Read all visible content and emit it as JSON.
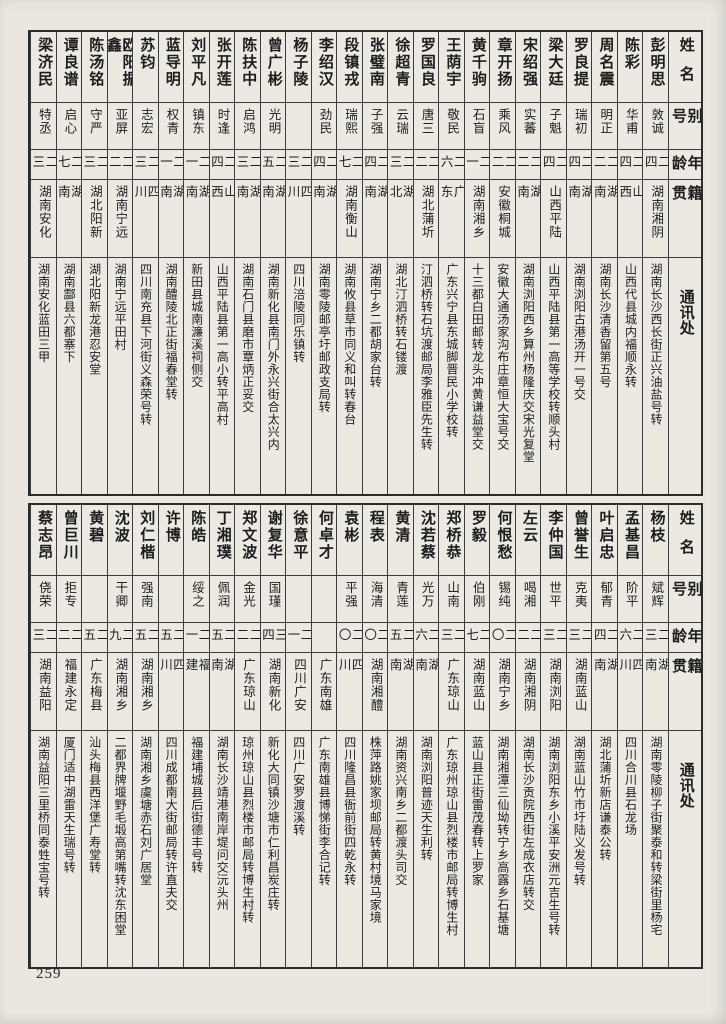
{
  "page": {
    "number": "259"
  },
  "headers": {
    "name": "姓名",
    "alias": "别号",
    "age": "年龄",
    "origin": "籍贯",
    "address": "通讯处"
  },
  "tables": [
    {
      "persons": [
        {
          "name": "彭明思",
          "alias": "敦诚",
          "age": "二四",
          "origin": "湖南湘阴",
          "address": "湖南长沙西长街正兴油盐号转"
        },
        {
          "name": "陈彩",
          "alias": "华甫",
          "age": "二四",
          "origin": "山西",
          "address": "山西代县城内福顺永转"
        },
        {
          "name": "周名震",
          "alias": "明正",
          "age": "二二",
          "origin": "湖南",
          "address": "湖南长沙清香留第五号"
        },
        {
          "name": "罗良提",
          "alias": "瑞初",
          "age": "二四",
          "origin": "湖南",
          "address": "湖南浏阳古港汤开一号交"
        },
        {
          "name": "梁大廷",
          "alias": "子魁",
          "age": "二四",
          "origin": "山西平陆",
          "address": "山西平陆县第一高等学校转顺头村"
        },
        {
          "name": "宋绍强",
          "alias": "实蕃",
          "age": "二二",
          "origin": "湖南",
          "address": "湖南浏阳西乡算州杨隆庆交宋光复堂"
        },
        {
          "name": "章开扬",
          "alias": "乘风",
          "age": "二二",
          "origin": "安徽桐城",
          "address": "安徽大通汤家沟布庄章恒大宝号交"
        },
        {
          "name": "黄千驹",
          "alias": "石盲",
          "age": "二一",
          "origin": "湖南湘乡",
          "address": "十三都白田邮转龙头冲黄谦益堂交"
        },
        {
          "name": "王荫宇",
          "alias": "敬民",
          "age": "二六",
          "origin": "广东",
          "address": "广东兴宁县东城脚晋民小学校转"
        },
        {
          "name": "罗国良",
          "alias": "唐三",
          "age": "二二",
          "origin": "湖北蒲圻",
          "address": "汀泗桥转石坑渡邮局李雅臣先生转"
        },
        {
          "name": "徐超青",
          "alias": "云瑞",
          "age": "二三",
          "origin": "湖北",
          "address": "湖北汀泗桥转石镂渡"
        },
        {
          "name": "张璧南",
          "alias": "子强",
          "age": "二四",
          "origin": "湖南",
          "address": "湖南宁乡二都胡家台转"
        },
        {
          "name": "段镇戎",
          "alias": "瑞熙",
          "age": "二七",
          "origin": "湖南衡山",
          "address": "湖南攸县草市同义和叫转春台"
        },
        {
          "name": "李绍汉",
          "alias": "劲民",
          "age": "二四",
          "origin": "湖南",
          "address": "湖南零陵邮亭圩邮政支局转"
        },
        {
          "name": "杨子陵",
          "alias": "",
          "age": "二三",
          "origin": "四川",
          "address": "四川涪陵同乐镇转"
        },
        {
          "name": "曾广彬",
          "alias": "光明",
          "age": "二五",
          "origin": "湖南",
          "address": "湖南新化县南门外永兴街合太兴内"
        },
        {
          "name": "陈扶中",
          "alias": "启鸿",
          "age": "二三",
          "origin": "湖南",
          "address": "湖南石门县磨市覃炳正妥交"
        },
        {
          "name": "张开莲",
          "alias": "时逢",
          "age": "二四",
          "origin": "山西",
          "address": "山西平陆县第一高小转平高村"
        },
        {
          "name": "刘平凡",
          "alias": "镇东",
          "age": "二一",
          "origin": "湖南",
          "address": "新田县城南濂溪祠侧交"
        },
        {
          "name": "蓝导明",
          "alias": "权青",
          "age": "二一",
          "origin": "湖南",
          "address": "湖南醴陵北正街福春堂转"
        },
        {
          "name": "苏钧",
          "alias": "志宏",
          "age": "二三",
          "origin": "四川",
          "address": "四川南充县下河街义森荣号转"
        },
        {
          "name": "欧阳振鑫",
          "alias": "亚屏",
          "age": "二二",
          "origin": "湖南宁远",
          "address": "湖南宁远平田村"
        },
        {
          "name": "陈汤铭",
          "alias": "守严",
          "age": "二三",
          "origin": "湖北阳新",
          "address": "湖北阳新龙港忍安堂"
        },
        {
          "name": "谭良谱",
          "alias": "启心",
          "age": "二七",
          "origin": "湖南",
          "address": "湖南酃县六都寨下"
        },
        {
          "name": "梁济民",
          "alias": "特丞",
          "age": "二三",
          "origin": "湖南安化",
          "address": "湖南安化蓝田三甲"
        }
      ]
    },
    {
      "persons": [
        {
          "name": "杨枝",
          "alias": "斌辉",
          "age": "二三",
          "origin": "湖南",
          "address": "湖南零陵柳子街聚泰和转梁街里杨宅"
        },
        {
          "name": "孟基昌",
          "alias": "阶平",
          "age": "二六",
          "origin": "四川",
          "address": "四川合川县石龙场"
        },
        {
          "name": "叶启忠",
          "alias": "郁青",
          "age": "二四",
          "origin": "湖南",
          "address": "湖北蒲圻新店谦泰公转"
        },
        {
          "name": "曾誉生",
          "alias": "克夷",
          "age": "二三",
          "origin": "湖南蓝山",
          "address": "湖南蓝山竹市圩陆义发号转"
        },
        {
          "name": "李仲国",
          "alias": "世平",
          "age": "二三",
          "origin": "湖南浏阳",
          "address": "湖南浏阳东乡小溪平安洲元吉生号转"
        },
        {
          "name": "左云",
          "alias": "喝湘",
          "age": "二二",
          "origin": "湖南湘阴",
          "address": "湖南长沙贡院西街左成衣店转交"
        },
        {
          "name": "何恨愁",
          "alias": "锡纯",
          "age": "二〇",
          "origin": "湖南宁乡",
          "address": "湖南湘潭三仙坳转宁乡高露乡石基塘"
        },
        {
          "name": "罗毅",
          "alias": "伯刚",
          "age": "二七",
          "origin": "湖南蓝山",
          "address": "蓝山县正街雷茂春转上罗家"
        },
        {
          "name": "郑桥恭",
          "alias": "山南",
          "age": "二三",
          "origin": "广东琼山",
          "address": "广东琼州琼山县烈楼市邮局转博生村"
        },
        {
          "name": "沈若蔡",
          "alias": "光万",
          "age": "二六",
          "origin": "湖南",
          "address": "湖南浏阳普迹天生利转"
        },
        {
          "name": "黄清",
          "alias": "青莲",
          "age": "二五",
          "origin": "湖南",
          "address": "湖南资兴南乡二都渡头司交"
        },
        {
          "name": "程表",
          "alias": "海清",
          "age": "二〇",
          "origin": "湖南湘醴",
          "address": "株萍路姚家坝邮局转黄村境马家境"
        },
        {
          "name": "袁彬",
          "alias": "平强",
          "age": "二〇",
          "origin": "四川",
          "address": "四川隆昌县衙前街四乾永转"
        },
        {
          "name": "何卓才",
          "alias": "",
          "age": "",
          "origin": "广东南雄",
          "address": "广东南雄县博悌街李合记转"
        },
        {
          "name": "徐意平",
          "alias": "",
          "age": "二一",
          "origin": "四川广安",
          "address": "四川广安罗渡溪转"
        },
        {
          "name": "谢复华",
          "alias": "国瑾",
          "age": "三四",
          "origin": "湖南新化",
          "address": "新化大同镇沙塘市仁利昌炭庄转"
        },
        {
          "name": "郑文波",
          "alias": "金光",
          "age": "二二",
          "origin": "广东琼山",
          "address": "琼州琼山县烈楼市邮局转博生村转"
        },
        {
          "name": "丁湘璞",
          "alias": "佩润",
          "age": "二五",
          "origin": "湖南",
          "address": "湖南长沙靖港南岸堤问交沅头州"
        },
        {
          "name": "陈皓",
          "alias": "绥之",
          "age": "二一",
          "origin": "福建",
          "address": "福建埔城县后街德丰号转"
        },
        {
          "name": "许博",
          "alias": "",
          "age": "二五",
          "origin": "四川",
          "address": "四川成都南大街邮局转许直夫交"
        },
        {
          "name": "刘仁楷",
          "alias": "强南",
          "age": "二五",
          "origin": "湖南湘乡",
          "address": "湖南湘乡虞塘赤石刘广居堂"
        },
        {
          "name": "沈波",
          "alias": "干卿",
          "age": "二九",
          "origin": "湖南湘乡",
          "address": "二都界牌堰野毛塅高第嘴转沈东困堂"
        },
        {
          "name": "黄碧",
          "alias": "",
          "age": "二五",
          "origin": "广东梅县",
          "address": "汕头梅县西洋堡广寿堂转"
        },
        {
          "name": "曾巨川",
          "alias": "拒专",
          "age": "二二",
          "origin": "福建永定",
          "address": "厦门适中湖雷天生瑞号转"
        },
        {
          "name": "蔡志昂",
          "alias": "侥荣",
          "age": "二三",
          "origin": "湖南益阳",
          "address": "湖南益阳三里桥同泰甡宝号转"
        }
      ]
    }
  ]
}
